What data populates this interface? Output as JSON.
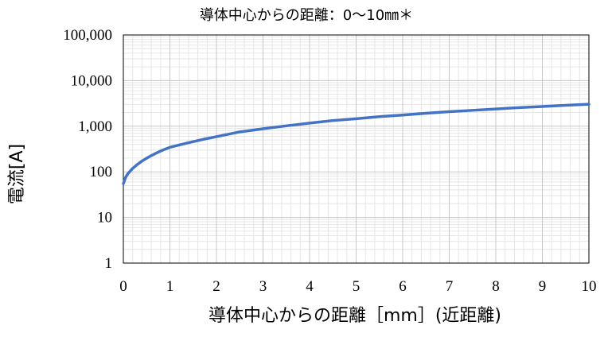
{
  "chart_data": {
    "type": "line",
    "title": "導体中心からの距離：0～10㎜＊",
    "xlabel": "導体中心からの距離［mm］(近距離)",
    "ylabel": "電流[A]",
    "xlim": [
      0,
      10
    ],
    "ylim": [
      1,
      100000
    ],
    "yscale": "log",
    "xticks": [
      "0",
      "1",
      "2",
      "3",
      "4",
      "5",
      "6",
      "7",
      "8",
      "9",
      "10"
    ],
    "yticks": [
      "1",
      "10",
      "100",
      "1,000",
      "10,000",
      "100,000"
    ],
    "grid": true,
    "series": [
      {
        "color": "#4472C4",
        "x": [
          0.0,
          0.05,
          0.1,
          0.2,
          0.3,
          0.4,
          0.5,
          0.6,
          0.7,
          0.8,
          0.9,
          1.0,
          1.25,
          1.5,
          1.75,
          2.0,
          2.5,
          3.0,
          3.5,
          4.0,
          4.5,
          5.0,
          5.5,
          6.0,
          6.5,
          7.0,
          7.5,
          8.0,
          8.5,
          9.0,
          9.5,
          10.0
        ],
        "y": [
          55,
          76,
          92,
          119,
          145,
          172,
          199,
          227,
          256,
          286,
          315,
          345,
          400,
          460,
          525,
          590,
          750,
          880,
          1020,
          1170,
          1330,
          1460,
          1620,
          1760,
          1920,
          2080,
          2230,
          2390,
          2560,
          2710,
          2870,
          3030
        ]
      }
    ]
  }
}
